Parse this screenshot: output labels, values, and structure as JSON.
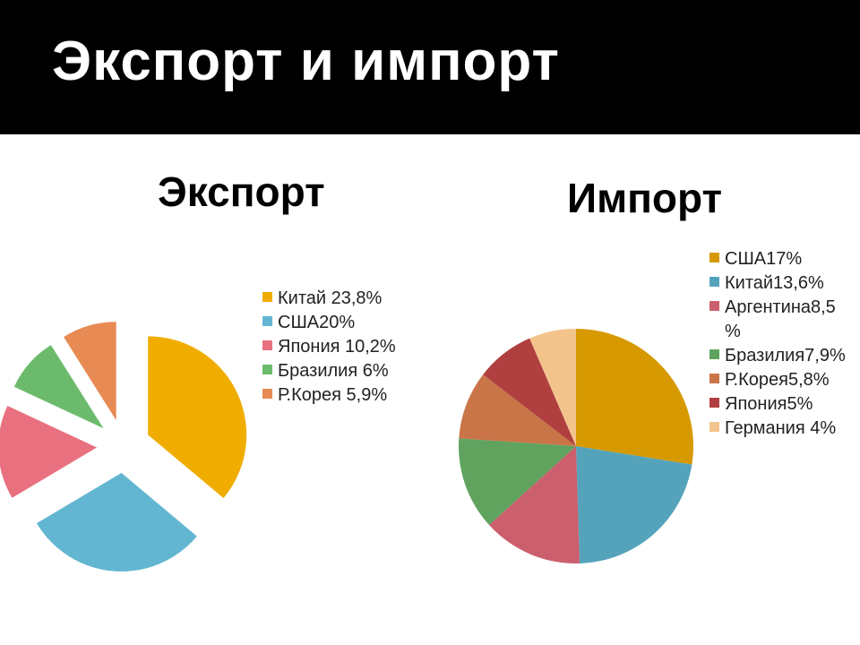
{
  "slide": {
    "title": "Экспорт и импорт"
  },
  "chart_data": [
    {
      "type": "pie",
      "style": "exploded",
      "title": "Экспорт",
      "slices": [
        {
          "label": "Китай 23,8%",
          "value": 23.8,
          "color": "#f0ad00"
        },
        {
          "label": "США20%",
          "value": 20.0,
          "color": "#63b6d1"
        },
        {
          "label": "Япония 10,2%",
          "value": 10.2,
          "color": "#e8707f"
        },
        {
          "label": "Бразилия 6%",
          "value": 6.0,
          "color": "#6cbb6c"
        },
        {
          "label": "Р.Корея 5,9%",
          "value": 5.9,
          "color": "#e88a54"
        }
      ],
      "legend_position": "right"
    },
    {
      "type": "pie",
      "title": "Импорт",
      "slices": [
        {
          "label": "США17%",
          "value": 17.0,
          "color": "#d69a00"
        },
        {
          "label": "Китай13,6%",
          "value": 13.6,
          "color": "#55a3bb"
        },
        {
          "label": "Аргентина8,5%",
          "value": 8.5,
          "color": "#cc5f6d"
        },
        {
          "label": "Бразилия7,9%",
          "value": 7.9,
          "color": "#5fa35f"
        },
        {
          "label": "Р.Корея5,8%",
          "value": 5.8,
          "color": "#c97548"
        },
        {
          "label": "Япония5%",
          "value": 5.0,
          "color": "#b04040"
        },
        {
          "label": "Германия 4%",
          "value": 4.0,
          "color": "#f2c48c"
        }
      ],
      "legend_position": "right"
    }
  ]
}
